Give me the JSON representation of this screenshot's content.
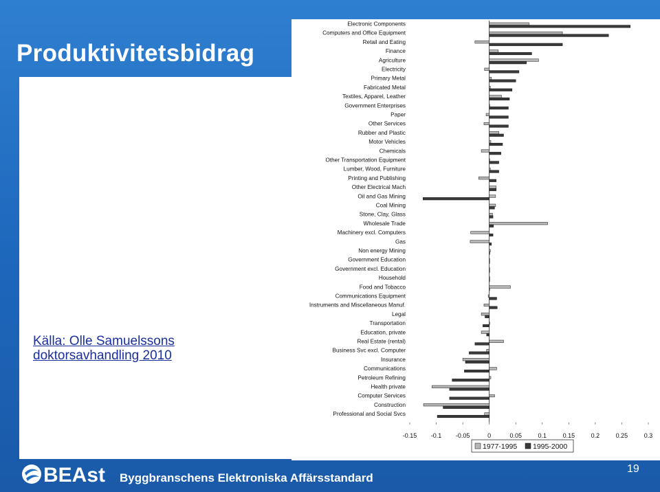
{
  "slide": {
    "title": "Produktivitetsbidrag",
    "source_line1": "Källa: Olle Samuelssons",
    "source_line2": "doktorsavhandling 2010",
    "footer_text": "Byggbranschens Elektroniska Affärsstandard",
    "page_number": "19",
    "logo_text": "BEAst"
  },
  "colors": {
    "background": "#1f6cc0",
    "series_1977_1995": "#b8b8b8",
    "series_1995_2000": "#3a3a3a",
    "title": "#ffffff",
    "source_note": "#1b2f9c"
  },
  "chart_data": {
    "type": "bar",
    "orientation": "horizontal",
    "categories": [
      "Electronic Components",
      "Computers and Office Equipment",
      "Retail and Eating",
      "Finance",
      "Agriculture",
      "Electricity",
      "Primary Metal",
      "Fabricated Metal",
      "Textiles, Apparel, Leather",
      "Government Enterprises",
      "Paper",
      "Other Services",
      "Rubber and Plastic",
      "Motor Vehicles",
      "Chemicals",
      "Other Transportation Equipment",
      "Lumber, Wood, Furniture",
      "Printing and Publishing",
      "Other Electrical Mach",
      "Oil and Gas Mining",
      "Coal Mining",
      "Stone, Clay, Glass",
      "Wholesale Trade",
      "Machinery excl. Computers",
      "Gas",
      "Non energy Mining",
      "Government Education",
      "Government excl. Education",
      "Household",
      "Food and Tobacco",
      "Communications Equipment",
      "Instruments and Miscellaneous Manuf.",
      "Legal",
      "Transportation",
      "Education, private",
      "Real Estate (rental)",
      "Business Svc excl. Computer",
      "Insurance",
      "Communications",
      "Petroleum Refining",
      "Health private",
      "Computer Services",
      "Construction",
      "Professional and Social Svcs"
    ],
    "series": [
      {
        "name": "1977-1995",
        "values": [
          0.075,
          0.138,
          -0.027,
          0.017,
          0.093,
          -0.009,
          0.004,
          0.002,
          0.023,
          0.0,
          -0.006,
          -0.01,
          0.018,
          0.003,
          -0.015,
          0.0,
          0.002,
          -0.02,
          0.013,
          0.012,
          0.012,
          0.006,
          0.11,
          -0.035,
          -0.036,
          0.002,
          0.0,
          0.0,
          0.0,
          0.04,
          -0.002,
          -0.01,
          -0.015,
          0.0,
          -0.015,
          0.027,
          -0.005,
          -0.05,
          0.014,
          0.003,
          -0.108,
          0.01,
          -0.124,
          -0.009
        ]
      },
      {
        "name": "1995-2000",
        "values": [
          0.266,
          0.225,
          0.138,
          0.08,
          0.07,
          0.056,
          0.05,
          0.043,
          0.038,
          0.036,
          0.036,
          0.036,
          0.027,
          0.025,
          0.022,
          0.018,
          0.018,
          0.013,
          0.013,
          -0.125,
          0.01,
          0.007,
          0.008,
          0.007,
          0.004,
          0.001,
          0.0,
          0.0,
          0.0,
          0.0,
          0.014,
          0.015,
          -0.008,
          -0.012,
          -0.005,
          -0.027,
          -0.038,
          -0.045,
          -0.047,
          -0.07,
          -0.075,
          -0.075,
          -0.087,
          -0.098
        ]
      }
    ],
    "x_ticks": [
      "-0.15",
      "-0.1",
      "-0.05",
      "0",
      "0.05",
      "0.1",
      "0.15",
      "0.2",
      "0.25",
      "0.3"
    ],
    "xlim": [
      -0.15,
      0.3
    ],
    "legend_position": "bottom-right",
    "grid": false
  }
}
